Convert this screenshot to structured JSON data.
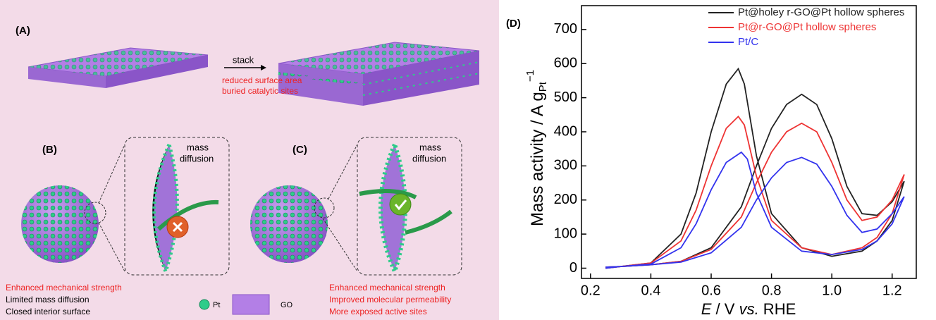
{
  "panels": {
    "a": {
      "label": "(A)",
      "arrow_label": "stack",
      "notes": [
        "reduced surface area",
        "buried catalytic sites"
      ]
    },
    "b": {
      "label": "(B)",
      "zoom_label": [
        "mass",
        "diffusion"
      ],
      "notes": [
        "Enhanced mechanical strength",
        "Limited mass diffusion",
        "Closed interior surface"
      ]
    },
    "c": {
      "label": "(C)",
      "zoom_label": [
        "mass",
        "diffusion"
      ],
      "notes": [
        "Enhanced mechanical strength",
        "Improved molecular permeability",
        "More exposed active sites"
      ]
    },
    "legend": [
      "Pt",
      "GO"
    ]
  },
  "chart_data": {
    "type": "line",
    "panel_label": "(D)",
    "y_label": {
      "main": "Mass activity / A g",
      "sub": "Pt",
      "sup": "−1"
    },
    "x_label": [
      "E",
      " / V ",
      "vs.",
      " RHE"
    ],
    "xlim": [
      0.17,
      1.28
    ],
    "xticks": [
      0.2,
      0.4,
      0.6,
      0.8,
      {
        "value": 1.0,
        "label": "1.0"
      },
      1.2
    ],
    "ylim": [
      -30,
      770
    ],
    "yticks": [
      0,
      100,
      200,
      300,
      400,
      500,
      600,
      700
    ],
    "legend_position": "upper right",
    "series": [
      {
        "name": "Pt@holey r-GO@Pt hollow spheres",
        "color": "#222222",
        "x": [
          0.25,
          0.3,
          0.4,
          0.5,
          0.6,
          0.7,
          0.75,
          0.8,
          0.85,
          0.9,
          0.95,
          1.0,
          1.05,
          1.1,
          1.15,
          1.2,
          1.24,
          1.2,
          1.15,
          1.1,
          1.0,
          0.9,
          0.8,
          0.75,
          0.71,
          0.69,
          0.65,
          0.6,
          0.55,
          0.5,
          0.4,
          0.3,
          0.25
        ],
        "values": [
          0,
          5,
          10,
          20,
          60,
          180,
          300,
          410,
          480,
          510,
          480,
          380,
          240,
          160,
          155,
          195,
          255,
          140,
          80,
          50,
          35,
          60,
          160,
          330,
          540,
          585,
          540,
          400,
          220,
          100,
          15,
          5,
          3
        ]
      },
      {
        "name": "Pt@r-GO@Pt hollow spheres",
        "color": "#ee3333",
        "x": [
          0.25,
          0.3,
          0.4,
          0.5,
          0.6,
          0.7,
          0.75,
          0.8,
          0.85,
          0.9,
          0.95,
          1.0,
          1.05,
          1.1,
          1.15,
          1.2,
          1.24,
          1.2,
          1.15,
          1.1,
          1.0,
          0.9,
          0.8,
          0.75,
          0.71,
          0.69,
          0.65,
          0.6,
          0.55,
          0.5,
          0.4,
          0.3,
          0.25
        ],
        "values": [
          0,
          5,
          10,
          20,
          55,
          150,
          250,
          340,
          400,
          425,
          400,
          310,
          200,
          140,
          150,
          200,
          275,
          160,
          90,
          60,
          40,
          60,
          140,
          270,
          420,
          445,
          410,
          300,
          170,
          80,
          15,
          5,
          3
        ]
      },
      {
        "name": "Pt/C",
        "color": "#3333ee",
        "x": [
          0.25,
          0.3,
          0.4,
          0.5,
          0.6,
          0.7,
          0.75,
          0.8,
          0.85,
          0.9,
          0.95,
          1.0,
          1.05,
          1.1,
          1.15,
          1.2,
          1.24,
          1.2,
          1.15,
          1.1,
          1.0,
          0.9,
          0.8,
          0.75,
          0.72,
          0.7,
          0.65,
          0.6,
          0.55,
          0.5,
          0.4,
          0.3,
          0.25
        ],
        "values": [
          0,
          5,
          10,
          18,
          45,
          120,
          200,
          265,
          310,
          325,
          305,
          240,
          155,
          105,
          115,
          160,
          210,
          130,
          80,
          55,
          40,
          50,
          120,
          220,
          320,
          340,
          310,
          230,
          130,
          60,
          12,
          5,
          3
        ]
      }
    ]
  }
}
